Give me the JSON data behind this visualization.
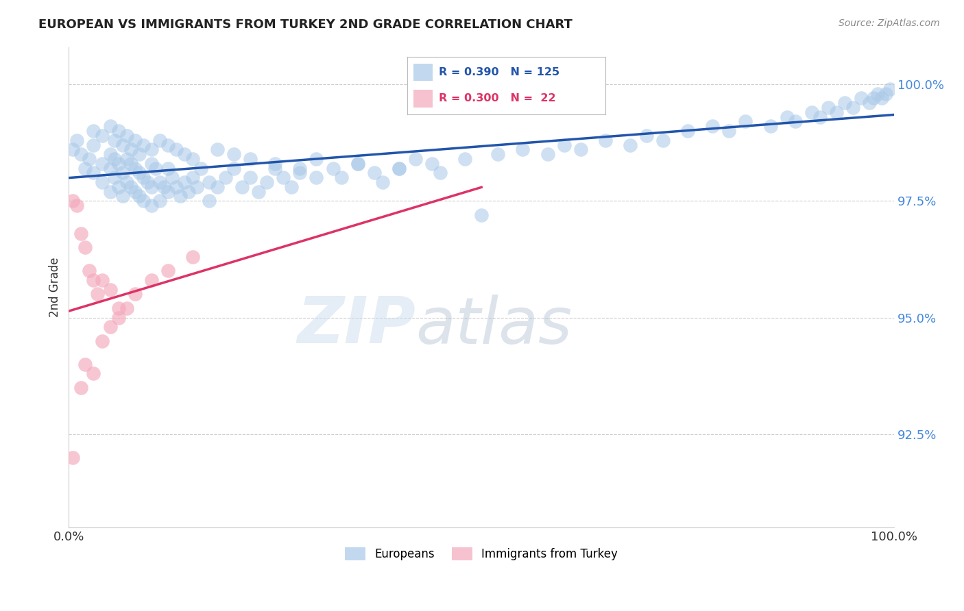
{
  "title": "EUROPEAN VS IMMIGRANTS FROM TURKEY 2ND GRADE CORRELATION CHART",
  "source": "Source: ZipAtlas.com",
  "ylabel": "2nd Grade",
  "xlim": [
    0.0,
    1.0
  ],
  "ylim": [
    0.905,
    1.008
  ],
  "yticks": [
    0.925,
    0.95,
    0.975,
    1.0
  ],
  "ytick_labels": [
    "92.5%",
    "95.0%",
    "97.5%",
    "100.0%"
  ],
  "xtick_labels": [
    "0.0%",
    "",
    "100.0%"
  ],
  "blue_color": "#a8c8e8",
  "pink_color": "#f4a8bc",
  "blue_line_color": "#2255aa",
  "pink_line_color": "#dd3366",
  "R_blue": 0.39,
  "N_blue": 125,
  "R_pink": 0.3,
  "N_pink": 22,
  "watermark_zip": "ZIP",
  "watermark_atlas": "atlas",
  "grid_color": "#cccccc",
  "background": "#ffffff",
  "blue_x": [
    0.005,
    0.01,
    0.015,
    0.02,
    0.025,
    0.03,
    0.03,
    0.04,
    0.04,
    0.05,
    0.05,
    0.05,
    0.055,
    0.055,
    0.06,
    0.06,
    0.065,
    0.065,
    0.07,
    0.07,
    0.075,
    0.075,
    0.08,
    0.08,
    0.085,
    0.085,
    0.09,
    0.09,
    0.095,
    0.1,
    0.1,
    0.1,
    0.105,
    0.11,
    0.11,
    0.115,
    0.12,
    0.12,
    0.125,
    0.13,
    0.135,
    0.14,
    0.145,
    0.15,
    0.155,
    0.16,
    0.17,
    0.17,
    0.18,
    0.19,
    0.2,
    0.21,
    0.22,
    0.23,
    0.24,
    0.25,
    0.26,
    0.27,
    0.28,
    0.3,
    0.32,
    0.33,
    0.35,
    0.37,
    0.38,
    0.4,
    0.42,
    0.44,
    0.45,
    0.48,
    0.5,
    0.52,
    0.55,
    0.58,
    0.6,
    0.62,
    0.65,
    0.68,
    0.7,
    0.72,
    0.75,
    0.78,
    0.8,
    0.82,
    0.85,
    0.87,
    0.88,
    0.9,
    0.91,
    0.92,
    0.93,
    0.94,
    0.95,
    0.96,
    0.97,
    0.975,
    0.98,
    0.985,
    0.99,
    0.995,
    0.03,
    0.04,
    0.05,
    0.055,
    0.06,
    0.065,
    0.07,
    0.075,
    0.08,
    0.085,
    0.09,
    0.1,
    0.11,
    0.12,
    0.13,
    0.14,
    0.15,
    0.18,
    0.2,
    0.22,
    0.25,
    0.28,
    0.3,
    0.35,
    0.4
  ],
  "blue_y": [
    0.986,
    0.988,
    0.985,
    0.982,
    0.984,
    0.987,
    0.981,
    0.983,
    0.979,
    0.985,
    0.982,
    0.977,
    0.984,
    0.98,
    0.983,
    0.978,
    0.981,
    0.976,
    0.984,
    0.979,
    0.983,
    0.978,
    0.982,
    0.977,
    0.981,
    0.976,
    0.98,
    0.975,
    0.979,
    0.983,
    0.978,
    0.974,
    0.982,
    0.979,
    0.975,
    0.978,
    0.982,
    0.977,
    0.98,
    0.978,
    0.976,
    0.979,
    0.977,
    0.98,
    0.978,
    0.982,
    0.979,
    0.975,
    0.978,
    0.98,
    0.982,
    0.978,
    0.98,
    0.977,
    0.979,
    0.982,
    0.98,
    0.978,
    0.981,
    0.98,
    0.982,
    0.98,
    0.983,
    0.981,
    0.979,
    0.982,
    0.984,
    0.983,
    0.981,
    0.984,
    0.972,
    0.985,
    0.986,
    0.985,
    0.987,
    0.986,
    0.988,
    0.987,
    0.989,
    0.988,
    0.99,
    0.991,
    0.99,
    0.992,
    0.991,
    0.993,
    0.992,
    0.994,
    0.993,
    0.995,
    0.994,
    0.996,
    0.995,
    0.997,
    0.996,
    0.997,
    0.998,
    0.997,
    0.998,
    0.999,
    0.99,
    0.989,
    0.991,
    0.988,
    0.99,
    0.987,
    0.989,
    0.986,
    0.988,
    0.985,
    0.987,
    0.986,
    0.988,
    0.987,
    0.986,
    0.985,
    0.984,
    0.986,
    0.985,
    0.984,
    0.983,
    0.982,
    0.984,
    0.983,
    0.982
  ],
  "pink_x": [
    0.005,
    0.01,
    0.015,
    0.02,
    0.025,
    0.03,
    0.035,
    0.04,
    0.05,
    0.06,
    0.005,
    0.015,
    0.02,
    0.03,
    0.04,
    0.05,
    0.06,
    0.07,
    0.08,
    0.1,
    0.12,
    0.15
  ],
  "pink_y": [
    0.975,
    0.974,
    0.968,
    0.965,
    0.96,
    0.958,
    0.955,
    0.958,
    0.956,
    0.952,
    0.92,
    0.935,
    0.94,
    0.938,
    0.945,
    0.948,
    0.95,
    0.952,
    0.955,
    0.958,
    0.96,
    0.963
  ]
}
